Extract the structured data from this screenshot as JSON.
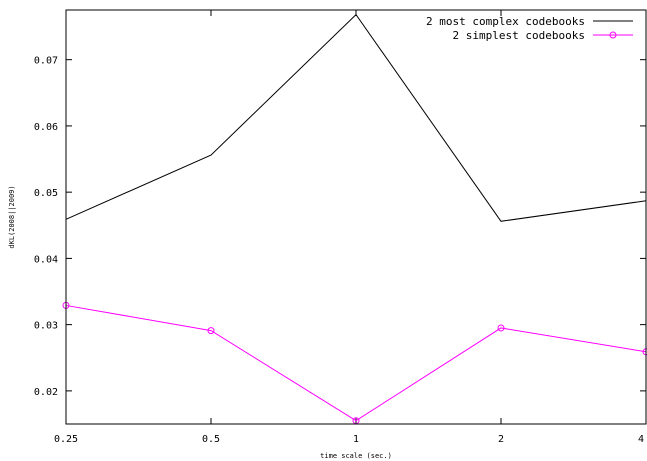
{
  "chart_data": {
    "type": "line",
    "xlabel": "time scale (sec.)",
    "ylabel": "dKL(2008||2009)",
    "x_scale": "categorical",
    "categories": [
      "0.25",
      "0.5",
      "1",
      "2",
      "4"
    ],
    "ylim": [
      0.015,
      0.0775
    ],
    "yticks": [
      "0.02",
      "0.03",
      "0.04",
      "0.05",
      "0.06",
      "0.07"
    ],
    "grid": false,
    "legend_position": "top-right",
    "series": [
      {
        "name": "2 most complex codebooks",
        "color": "#000000",
        "marker": "none",
        "values": [
          0.0459,
          0.0556,
          0.0768,
          0.0456,
          0.0487
        ]
      },
      {
        "name": "2 simplest codebooks",
        "color": "#ff00ff",
        "marker": "circle",
        "values": [
          0.0329,
          0.0291,
          0.0155,
          0.0295,
          0.0259
        ]
      }
    ]
  }
}
